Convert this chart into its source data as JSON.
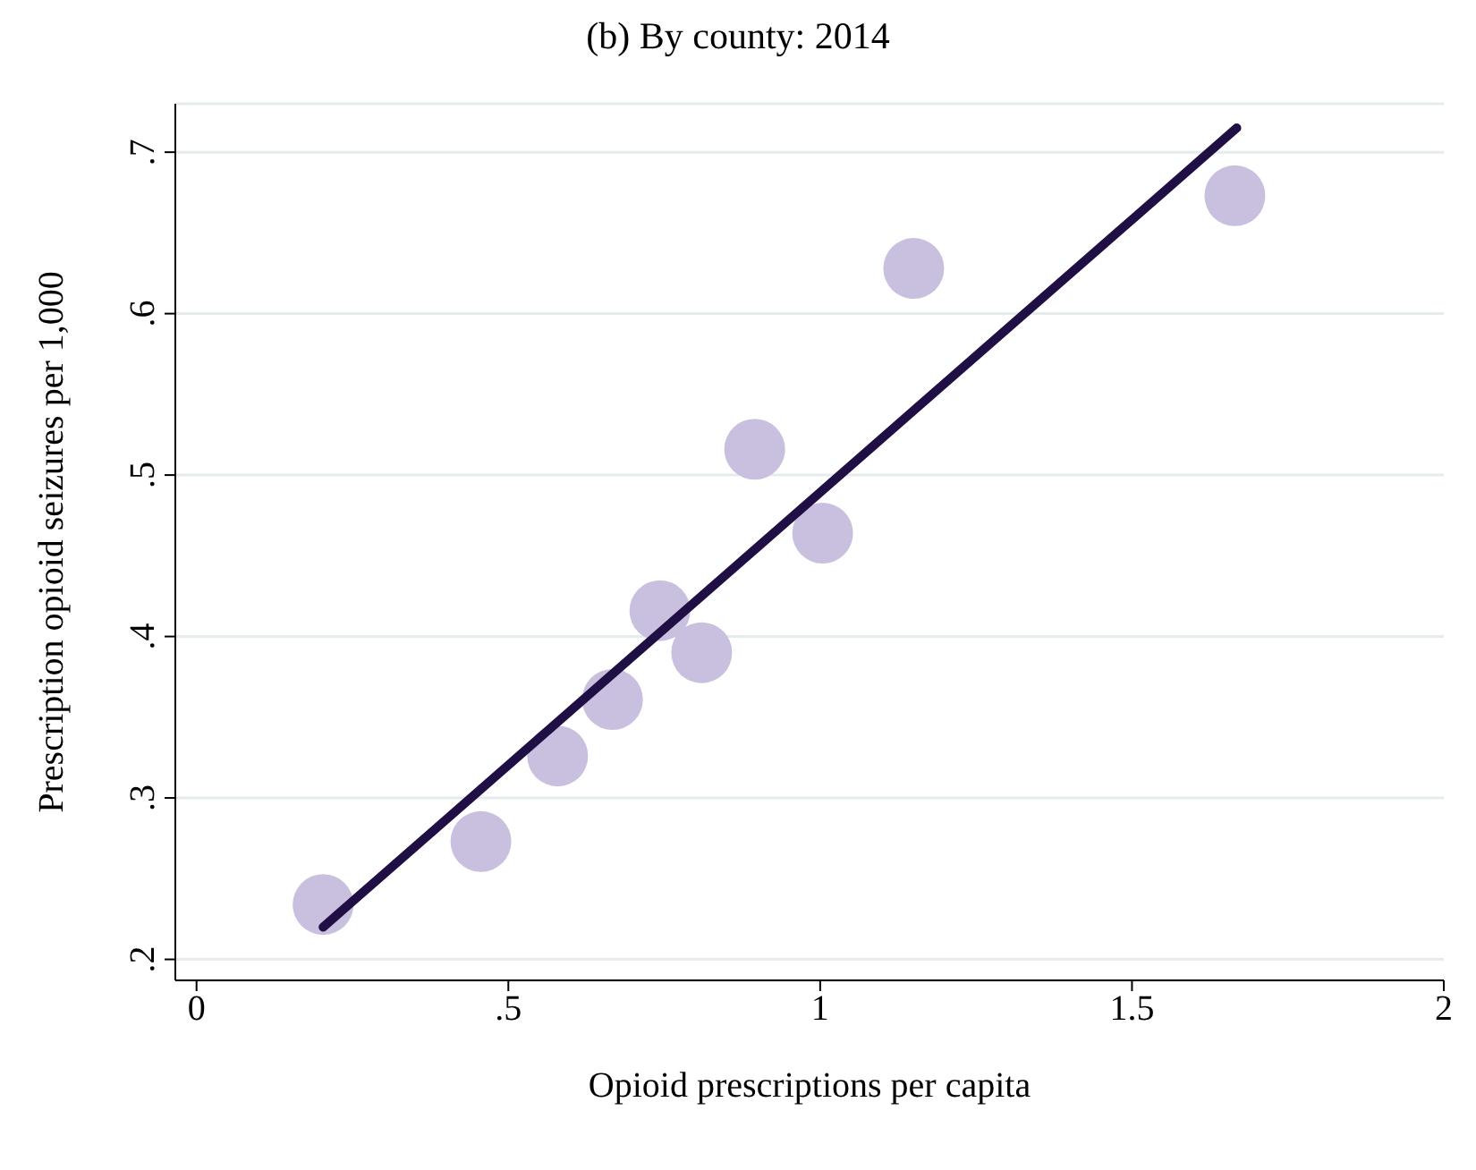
{
  "chart_data": {
    "type": "scatter",
    "title": "(b) By county: 2014",
    "xlabel": "Opioid prescriptions per capita",
    "ylabel": "Prescription opioid seizures per 1,000",
    "xlim": [
      -0.034,
      2.0
    ],
    "ylim": [
      0.187,
      0.73
    ],
    "xticks": [
      0,
      {
        "value": 0.5,
        "label": ".5"
      },
      1,
      1.5,
      2
    ],
    "yticks": [
      {
        "value": 0.2,
        "label": ".2"
      },
      {
        "value": 0.3,
        "label": ".3"
      },
      {
        "value": 0.4,
        "label": ".4"
      },
      {
        "value": 0.5,
        "label": ".5"
      },
      {
        "value": 0.6,
        "label": ".6"
      },
      {
        "value": 0.7,
        "label": ".7"
      }
    ],
    "grid": "y",
    "marker": "circle",
    "series": [
      {
        "color": "#c9c0e0",
        "x": [
          0.203,
          0.456,
          0.579,
          0.667,
          0.743,
          0.81,
          0.895,
          1.004,
          1.15,
          1.665
        ],
        "values": [
          0.234,
          0.273,
          0.326,
          0.361,
          0.416,
          0.39,
          0.516,
          0.464,
          0.628,
          0.673
        ]
      },
      {
        "type": "line",
        "color": "#1f0f44",
        "marker": "none",
        "x": [
          0.203,
          1.668
        ],
        "values": [
          0.22,
          0.715
        ]
      }
    ]
  }
}
